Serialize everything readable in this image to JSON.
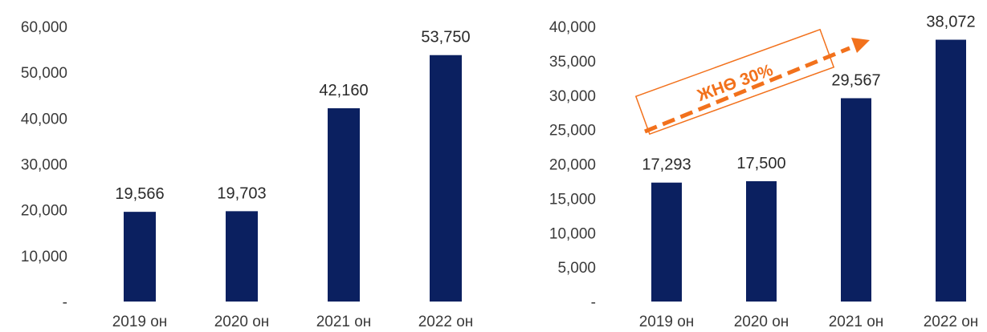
{
  "chart_data": [
    {
      "type": "bar",
      "categories": [
        "2019 он",
        "2020 он",
        "2021 он",
        "2022 он"
      ],
      "values": [
        19566,
        19703,
        42160,
        53750
      ],
      "data_labels": [
        "19,566",
        "19,703",
        "42,160",
        "53,750"
      ],
      "ylim": [
        0,
        60000
      ],
      "yticks": [
        0,
        10000,
        20000,
        30000,
        40000,
        50000,
        60000
      ],
      "ytick_labels": [
        "-",
        "10,000",
        "20,000",
        "30,000",
        "40,000",
        "50,000",
        "60,000"
      ],
      "bar_color": "#0b2060",
      "grid": false,
      "legend": "none"
    },
    {
      "type": "bar",
      "categories": [
        "2019 он",
        "2020 он",
        "2021 он",
        "2022 он"
      ],
      "values": [
        17293,
        17500,
        29567,
        38072
      ],
      "data_labels": [
        "17,293",
        "17,500",
        "29,567",
        "38,072"
      ],
      "ylim": [
        0,
        40000
      ],
      "yticks": [
        0,
        5000,
        10000,
        15000,
        20000,
        25000,
        30000,
        35000,
        40000
      ],
      "ytick_labels": [
        "-",
        "5,000",
        "10,000",
        "15,000",
        "20,000",
        "25,000",
        "30,000",
        "35,000",
        "40,000"
      ],
      "bar_color": "#0b2060",
      "grid": false,
      "legend": "none",
      "annotation": {
        "text": "ЖНӨ 30%",
        "color": "#f2711c"
      }
    }
  ]
}
